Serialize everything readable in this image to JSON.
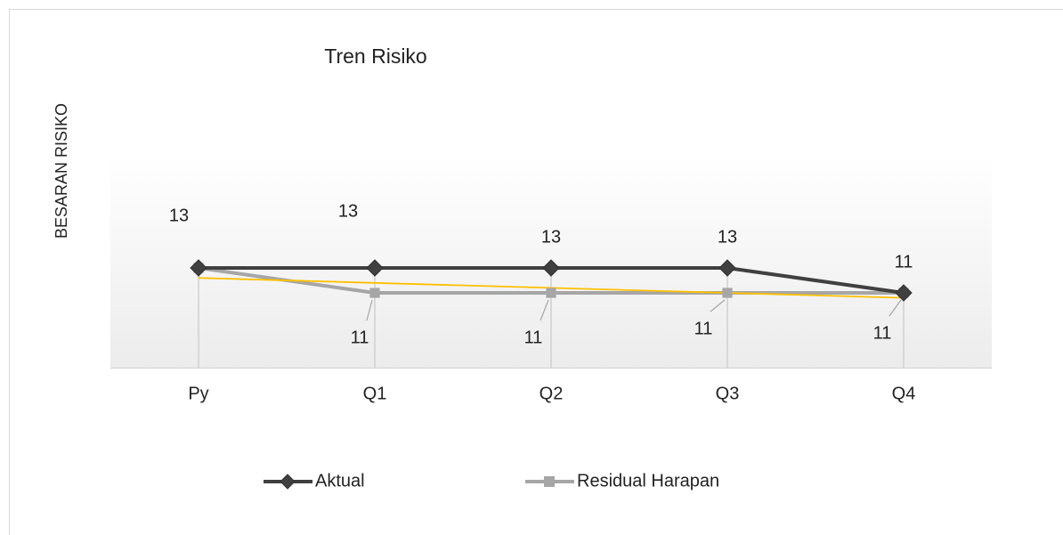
{
  "chart_data": {
    "type": "line",
    "title": "Tren Risiko",
    "y_label": "BESARAN RISIKO",
    "categories": [
      "Py",
      "Q1",
      "Q2",
      "Q3",
      "Q4"
    ],
    "series": [
      {
        "name": "Aktual",
        "color": "#404040",
        "marker": "diamond",
        "values": [
          13,
          13,
          13,
          13,
          11
        ]
      },
      {
        "name": "Residual Harapan",
        "color": "#a6a6a6",
        "marker": "square",
        "values": [
          13,
          11,
          11,
          11,
          11
        ],
        "trendline_color": "#ffc000"
      }
    ],
    "ylim": [
      5,
      22
    ],
    "legend": "bottom"
  }
}
